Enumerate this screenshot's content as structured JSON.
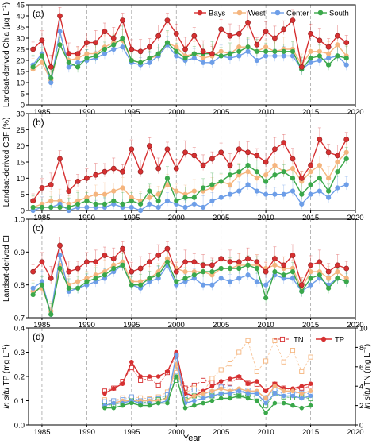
{
  "colors": {
    "bays": "#d63031",
    "west": "#f5b57e",
    "center": "#6d9ee8",
    "south": "#3aa84a",
    "axis": "#000000",
    "guide": "#9a9a9a"
  },
  "legend_names": [
    "Bays",
    "West",
    "Center",
    "South"
  ],
  "xlabel": "Year",
  "x_ticks": [
    "1985",
    "1990",
    "1995",
    "2000",
    "2005",
    "2010",
    "2015",
    "2020"
  ],
  "chart_data": [
    {
      "type": "line",
      "panel_label": "(a)",
      "ylabel": "Landsat-derived Chla (μg L⁻¹)",
      "xlim": [
        1983.5,
        2020
      ],
      "ylim": [
        0,
        45
      ],
      "yticks": [
        "0",
        "5",
        "10",
        "15",
        "20",
        "25",
        "30",
        "35",
        "40",
        "45"
      ],
      "legend_position": "top-right",
      "x": [
        1984,
        1985,
        1986,
        1987,
        1988,
        1989,
        1990,
        1991,
        1992,
        1993,
        1994,
        1995,
        1996,
        1997,
        1998,
        1999,
        2000,
        2001,
        2002,
        2003,
        2004,
        2005,
        2006,
        2007,
        2008,
        2009,
        2010,
        2011,
        2012,
        2013,
        2014,
        2015,
        2016,
        2017,
        2018,
        2019
      ],
      "series": [
        {
          "name": "Bays",
          "values": [
            25,
            29,
            17,
            40,
            23,
            23,
            28,
            28,
            33,
            30,
            38,
            25,
            24,
            26,
            31,
            38,
            32,
            25,
            31,
            24,
            23,
            34,
            31,
            32,
            37,
            27,
            33,
            30,
            34,
            38,
            17,
            32,
            29,
            26,
            31,
            28
          ]
        },
        {
          "name": "West",
          "values": [
            16,
            19,
            11,
            27,
            20,
            21,
            23,
            23,
            26,
            28,
            29,
            20,
            19,
            21,
            22,
            28,
            26,
            22,
            23,
            21,
            22,
            24,
            23,
            26,
            26,
            24,
            26,
            24,
            25,
            25,
            18,
            24,
            24,
            23,
            27,
            22
          ]
        },
        {
          "name": "Center",
          "values": [
            18,
            23,
            10,
            33,
            17,
            19,
            20,
            21,
            23,
            25,
            26,
            19,
            18,
            19,
            22,
            27,
            22,
            20,
            21,
            19,
            19,
            22,
            21,
            22,
            24,
            20,
            22,
            22,
            22,
            22,
            16,
            19,
            20,
            21,
            22,
            18
          ]
        },
        {
          "name": "South",
          "values": [
            17,
            22,
            12,
            27,
            19,
            17,
            21,
            22,
            25,
            27,
            30,
            20,
            19,
            21,
            23,
            28,
            24,
            21,
            23,
            23,
            23,
            22,
            23,
            24,
            26,
            24,
            24,
            24,
            24,
            24,
            16,
            21,
            22,
            18,
            22,
            21
          ]
        }
      ]
    },
    {
      "type": "line",
      "panel_label": "(b)",
      "ylabel": "Landsat-derived CBF (%)",
      "xlim": [
        1983.5,
        2020
      ],
      "ylim": [
        0,
        30
      ],
      "yticks": [
        "0",
        "5",
        "10",
        "15",
        "20",
        "25",
        "30"
      ],
      "x": [
        1984,
        1985,
        1986,
        1987,
        1988,
        1989,
        1990,
        1991,
        1992,
        1993,
        1994,
        1995,
        1996,
        1997,
        1998,
        1999,
        2000,
        2001,
        2002,
        2003,
        2004,
        2005,
        2006,
        2007,
        2008,
        2009,
        2010,
        2011,
        2012,
        2013,
        2014,
        2015,
        2016,
        2017,
        2018,
        2019
      ],
      "series": [
        {
          "name": "Bays",
          "values": [
            3,
            7,
            8,
            16,
            6,
            9,
            10,
            11,
            12,
            13,
            12,
            19,
            12,
            20,
            13,
            19,
            13,
            18,
            17,
            14,
            16,
            18,
            14,
            19,
            18,
            17,
            15,
            19,
            21,
            16,
            10,
            14,
            22,
            18,
            17,
            22
          ]
        },
        {
          "name": "West",
          "values": [
            1,
            2,
            3,
            3,
            2,
            3,
            4,
            5,
            5,
            6,
            7,
            4,
            3,
            4,
            5,
            8,
            6,
            5,
            6,
            6,
            7,
            9,
            8,
            11,
            12,
            10,
            11,
            14,
            12,
            13,
            9,
            12,
            14,
            10,
            15,
            18
          ]
        },
        {
          "name": "Center",
          "values": [
            0,
            1,
            1,
            2,
            0,
            1,
            1,
            1,
            1,
            2,
            1,
            1,
            0,
            2,
            1,
            3,
            2,
            1,
            2,
            1,
            3,
            4,
            5,
            6,
            8,
            6,
            5,
            5,
            5,
            6,
            2,
            5,
            6,
            4,
            7,
            8
          ]
        },
        {
          "name": "South",
          "values": [
            1,
            1,
            1,
            1,
            1,
            2,
            3,
            2,
            2,
            3,
            2,
            3,
            2,
            6,
            3,
            10,
            3,
            4,
            4,
            7,
            8,
            9,
            11,
            12,
            14,
            12,
            9,
            11,
            12,
            10,
            5,
            8,
            10,
            6,
            12,
            16
          ]
        }
      ]
    },
    {
      "type": "line",
      "panel_label": "(c)",
      "ylabel": "Landsat-derived EI",
      "xlim": [
        1983.5,
        2020
      ],
      "ylim": [
        0.7,
        1.0
      ],
      "yticks": [
        "0.7",
        "0.8",
        "0.9",
        "1.0"
      ],
      "x": [
        1984,
        1985,
        1986,
        1987,
        1988,
        1989,
        1990,
        1991,
        1992,
        1993,
        1994,
        1995,
        1996,
        1997,
        1998,
        1999,
        2000,
        2001,
        2002,
        2003,
        2004,
        2005,
        2006,
        2007,
        2008,
        2009,
        2010,
        2011,
        2012,
        2013,
        2014,
        2015,
        2016,
        2017,
        2018,
        2019
      ],
      "series": [
        {
          "name": "Bays",
          "values": [
            0.84,
            0.87,
            0.82,
            0.92,
            0.84,
            0.85,
            0.87,
            0.87,
            0.89,
            0.88,
            0.91,
            0.84,
            0.85,
            0.87,
            0.89,
            0.91,
            0.84,
            0.87,
            0.87,
            0.86,
            0.86,
            0.88,
            0.87,
            0.87,
            0.88,
            0.87,
            0.84,
            0.88,
            0.86,
            0.89,
            0.8,
            0.86,
            0.87,
            0.84,
            0.86,
            0.85
          ]
        },
        {
          "name": "West",
          "values": [
            0.78,
            0.79,
            0.72,
            0.86,
            0.8,
            0.81,
            0.82,
            0.83,
            0.84,
            0.86,
            0.87,
            0.81,
            0.81,
            0.82,
            0.84,
            0.88,
            0.85,
            0.84,
            0.84,
            0.84,
            0.83,
            0.85,
            0.85,
            0.86,
            0.86,
            0.86,
            0.85,
            0.86,
            0.85,
            0.85,
            0.79,
            0.84,
            0.84,
            0.82,
            0.84,
            0.82
          ]
        },
        {
          "name": "Center",
          "values": [
            0.79,
            0.81,
            0.71,
            0.89,
            0.78,
            0.79,
            0.8,
            0.81,
            0.82,
            0.84,
            0.86,
            0.8,
            0.79,
            0.81,
            0.82,
            0.86,
            0.8,
            0.81,
            0.82,
            0.8,
            0.8,
            0.82,
            0.81,
            0.82,
            0.83,
            0.81,
            0.8,
            0.83,
            0.82,
            0.82,
            0.78,
            0.8,
            0.82,
            0.8,
            0.82,
            0.81
          ]
        },
        {
          "name": "South",
          "values": [
            0.77,
            0.8,
            0.71,
            0.85,
            0.79,
            0.79,
            0.81,
            0.82,
            0.83,
            0.85,
            0.86,
            0.8,
            0.8,
            0.82,
            0.83,
            0.87,
            0.81,
            0.82,
            0.83,
            0.84,
            0.84,
            0.85,
            0.85,
            0.85,
            0.86,
            0.85,
            0.76,
            0.84,
            0.83,
            0.84,
            0.78,
            0.82,
            0.83,
            0.79,
            0.82,
            0.81
          ]
        }
      ]
    },
    {
      "type": "line",
      "panel_label": "(d)",
      "ylabel": "In situ TP (mg L⁻¹)",
      "ylabel_right": "In situ TN (mg L⁻¹)",
      "xlim": [
        1983.5,
        2020
      ],
      "ylim": [
        0,
        0.4
      ],
      "ylim_right": [
        0,
        10
      ],
      "yticks": [
        "0.0",
        "0.1",
        "0.2",
        "0.3",
        "0.4"
      ],
      "yticks_right": [
        "0",
        "2",
        "4",
        "6",
        "8",
        "10"
      ],
      "legend_position": "top-right",
      "legend_labels": [
        "TN",
        "TP"
      ],
      "x": [
        1992,
        1993,
        1994,
        1995,
        1996,
        1997,
        1998,
        1999,
        2000,
        2001,
        2002,
        2003,
        2004,
        2005,
        2006,
        2007,
        2008,
        2009,
        2010,
        2011,
        2012,
        2013,
        2014,
        2015
      ],
      "tp_series": [
        {
          "name": "Bays",
          "values": [
            0.13,
            0.15,
            0.17,
            0.26,
            0.2,
            0.2,
            0.2,
            0.22,
            0.3,
            0.13,
            0.12,
            0.14,
            0.16,
            0.18,
            0.19,
            0.2,
            0.17,
            0.18,
            0.14,
            0.17,
            0.15,
            0.15,
            0.16,
            0.17
          ]
        },
        {
          "name": "West",
          "values": [
            0.08,
            0.09,
            0.1,
            0.1,
            0.1,
            0.1,
            0.1,
            0.11,
            0.25,
            0.1,
            0.12,
            0.13,
            0.14,
            0.15,
            0.14,
            0.15,
            0.14,
            0.14,
            0.11,
            0.16,
            0.14,
            0.14,
            0.13,
            0.14
          ]
        },
        {
          "name": "Center",
          "values": [
            0.08,
            0.09,
            0.09,
            0.1,
            0.09,
            0.09,
            0.09,
            0.1,
            0.29,
            0.09,
            0.1,
            0.11,
            0.12,
            0.13,
            0.13,
            0.14,
            0.13,
            0.13,
            0.09,
            0.13,
            0.12,
            0.12,
            0.11,
            0.12
          ]
        },
        {
          "name": "South",
          "values": [
            0.07,
            0.07,
            0.08,
            0.09,
            0.08,
            0.08,
            0.09,
            0.09,
            0.2,
            0.07,
            0.08,
            0.09,
            0.1,
            0.11,
            0.11,
            0.12,
            0.11,
            0.1,
            0.05,
            0.09,
            0.09,
            0.08,
            0.07,
            0.08
          ]
        }
      ],
      "tn_series": [
        {
          "name": "Bays",
          "values": [
            3.5,
            3.8,
            4.5,
            5.9,
            4.6,
            4.8,
            4.1,
            5.4,
            7.2,
            3.8,
            4.1,
            4.6,
            4.4,
            4.0,
            4.3,
            4.9,
            4.3,
            4.2,
            3.6,
            4.2,
            3.8,
            3.6,
            3.8,
            4.0
          ]
        },
        {
          "name": "West",
          "values": [
            2.6,
            2.5,
            2.8,
            2.9,
            2.8,
            2.7,
            2.9,
            3.4,
            5.4,
            3.3,
            3.8,
            3.4,
            4.8,
            5.7,
            6.3,
            7.5,
            8.7,
            5.5,
            6.6,
            8.7,
            6.5,
            7.7,
            5.5,
            7.0
          ]
        },
        {
          "name": "Center",
          "values": [
            2.4,
            2.5,
            2.6,
            2.9,
            2.5,
            2.6,
            2.7,
            3.1,
            5.1,
            3.0,
            3.6,
            3.2,
            3.4,
            3.9,
            3.8,
            3.4,
            3.6,
            3.3,
            2.8,
            3.7,
            3.2,
            3.3,
            3.3,
            3.2
          ]
        },
        {
          "name": "South",
          "values": [
            2.0,
            2.1,
            2.3,
            2.5,
            2.3,
            2.4,
            2.6,
            2.8,
            4.6,
            2.6,
            3.0,
            2.8,
            3.0,
            3.2,
            3.3,
            3.0,
            3.1,
            2.9,
            2.0,
            3.2,
            2.9,
            2.8,
            2.9,
            2.7
          ]
        }
      ]
    }
  ]
}
